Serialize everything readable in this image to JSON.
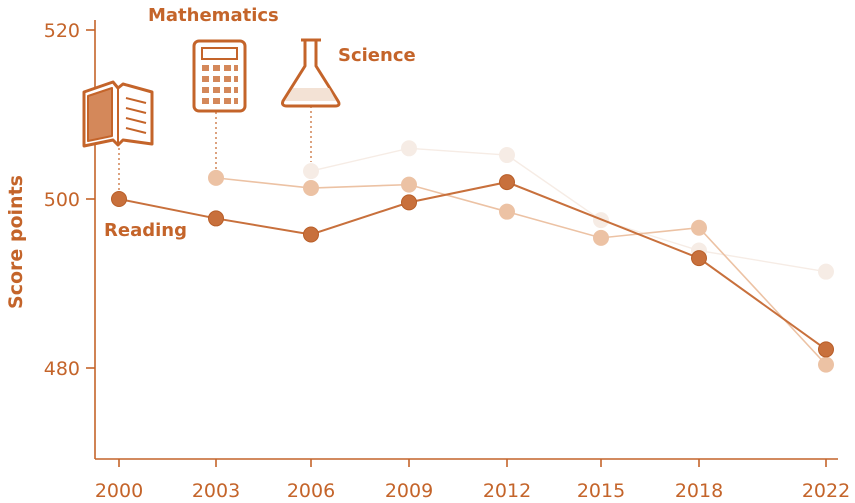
{
  "chart_data": {
    "type": "line",
    "ylabel": "Score points",
    "xlabel": "",
    "x": [
      "2000",
      "2003",
      "2006",
      "2009",
      "2012",
      "2015",
      "2018",
      "2022"
    ],
    "yticks": [
      "480",
      "500",
      "520"
    ],
    "ylim": [
      470,
      523
    ],
    "series": [
      {
        "name": "Reading",
        "color": "#c8703c",
        "values": [
          500,
          497.7,
          495.8,
          499.6,
          502.0,
          null,
          493.0,
          482.2
        ]
      },
      {
        "name": "Mathematics",
        "color": "#ecc2a4",
        "values": [
          null,
          502.5,
          501.3,
          501.7,
          498.5,
          495.4,
          496.6,
          480.4
        ]
      },
      {
        "name": "Science",
        "color": "#f6ece5",
        "values": [
          null,
          null,
          503.3,
          506.0,
          505.2,
          497.5,
          493.9,
          491.4
        ]
      }
    ],
    "icons": [
      "book-icon",
      "calculator-icon",
      "flask-icon"
    ],
    "grid": false,
    "accent_color": "#c4642a"
  }
}
